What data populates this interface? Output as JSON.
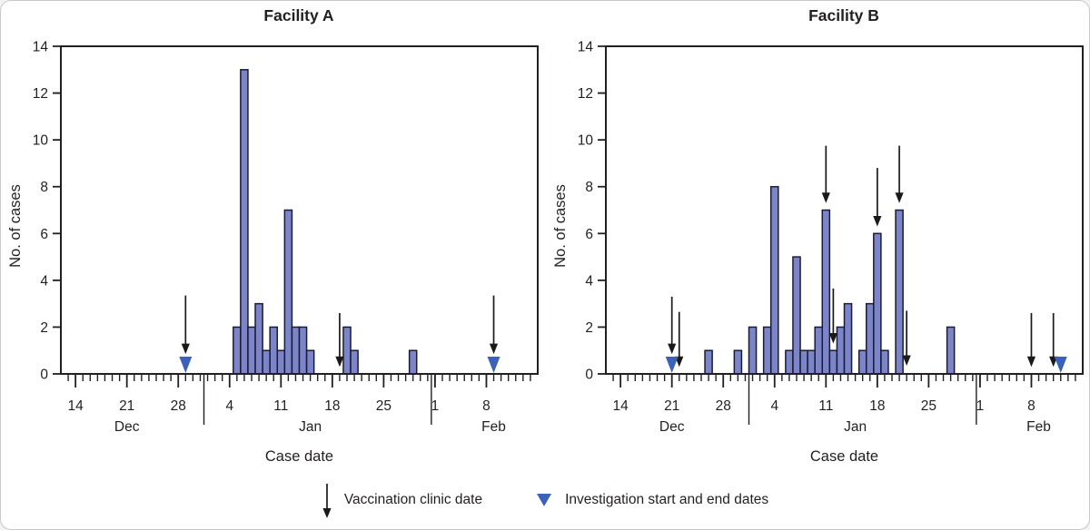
{
  "figure": {
    "panels": [
      "Facility A",
      "Facility B"
    ],
    "colors": {
      "bar_fill": "#7b85c7",
      "bar_stroke": "#1b1b33",
      "axis": "#231f20",
      "arrow": "#1a1a1a",
      "triangle": "#3b62b8",
      "card_border": "#c9c9c9"
    }
  },
  "legend": {
    "vaccination": "Vaccination clinic date",
    "investigation": "Investigation start and end dates"
  },
  "chart_data": [
    {
      "type": "bar",
      "title": "Facility A",
      "xlabel": "Case date",
      "ylabel": "No. of cases",
      "ylim": [
        0,
        14
      ],
      "yticks": [
        0,
        2,
        4,
        6,
        8,
        10,
        12,
        14
      ],
      "x_axis": {
        "start": "Dec 13",
        "end": "Feb 14",
        "week_ticks": [
          "Dec 14",
          "Dec 21",
          "Dec 28",
          "Jan 4",
          "Jan 11",
          "Jan 18",
          "Jan 25",
          "Feb 1",
          "Feb 8"
        ],
        "month_labels": [
          {
            "label": "Dec",
            "at": "Dec 21"
          },
          {
            "label": "Jan",
            "at": "Jan 15"
          },
          {
            "label": "Feb",
            "at": "Feb 9"
          }
        ],
        "month_dividers": [
          "Dec 31",
          "Jan 31"
        ]
      },
      "bars": [
        {
          "date": "Jan 5",
          "cases": 2
        },
        {
          "date": "Jan 6",
          "cases": 13
        },
        {
          "date": "Jan 7",
          "cases": 2
        },
        {
          "date": "Jan 8",
          "cases": 3
        },
        {
          "date": "Jan 9",
          "cases": 1
        },
        {
          "date": "Jan 10",
          "cases": 2
        },
        {
          "date": "Jan 11",
          "cases": 1
        },
        {
          "date": "Jan 12",
          "cases": 7
        },
        {
          "date": "Jan 13",
          "cases": 2
        },
        {
          "date": "Jan 14",
          "cases": 2
        },
        {
          "date": "Jan 15",
          "cases": 1
        },
        {
          "date": "Jan 20",
          "cases": 2
        },
        {
          "date": "Jan 21",
          "cases": 1
        },
        {
          "date": "Jan 29",
          "cases": 1
        }
      ],
      "vaccination_arrows": [
        {
          "date": "Dec 29",
          "from": 3.35,
          "to": 0.85
        },
        {
          "date": "Jan 19",
          "from": 2.6,
          "to": 0.3
        },
        {
          "date": "Feb 9",
          "from": 3.35,
          "to": 0.85
        }
      ],
      "investigation_markers": [
        "Dec 29",
        "Feb 9"
      ]
    },
    {
      "type": "bar",
      "title": "Facility B",
      "xlabel": "Case date",
      "ylabel": "No. of cases",
      "ylim": [
        0,
        14
      ],
      "yticks": [
        0,
        2,
        4,
        6,
        8,
        10,
        12,
        14
      ],
      "x_axis": {
        "start": "Dec 13",
        "end": "Feb 14",
        "week_ticks": [
          "Dec 14",
          "Dec 21",
          "Dec 28",
          "Jan 4",
          "Jan 11",
          "Jan 18",
          "Jan 25",
          "Feb 1",
          "Feb 8"
        ],
        "month_labels": [
          {
            "label": "Dec",
            "at": "Dec 21"
          },
          {
            "label": "Jan",
            "at": "Jan 15"
          },
          {
            "label": "Feb",
            "at": "Feb 9"
          }
        ],
        "month_dividers": [
          "Dec 31",
          "Jan 31"
        ]
      },
      "bars": [
        {
          "date": "Dec 26",
          "cases": 1
        },
        {
          "date": "Dec 30",
          "cases": 1
        },
        {
          "date": "Jan 1",
          "cases": 2
        },
        {
          "date": "Jan 3",
          "cases": 2
        },
        {
          "date": "Jan 4",
          "cases": 8
        },
        {
          "date": "Jan 6",
          "cases": 1
        },
        {
          "date": "Jan 7",
          "cases": 5
        },
        {
          "date": "Jan 8",
          "cases": 1
        },
        {
          "date": "Jan 9",
          "cases": 1
        },
        {
          "date": "Jan 10",
          "cases": 2
        },
        {
          "date": "Jan 11",
          "cases": 7
        },
        {
          "date": "Jan 12",
          "cases": 1
        },
        {
          "date": "Jan 13",
          "cases": 2
        },
        {
          "date": "Jan 14",
          "cases": 3
        },
        {
          "date": "Jan 16",
          "cases": 1
        },
        {
          "date": "Jan 17",
          "cases": 3
        },
        {
          "date": "Jan 18",
          "cases": 6
        },
        {
          "date": "Jan 19",
          "cases": 1
        },
        {
          "date": "Jan 21",
          "cases": 7
        },
        {
          "date": "Jan 28",
          "cases": 2
        }
      ],
      "vaccination_arrows": [
        {
          "date": "Dec 21",
          "from": 3.3,
          "to": 0.85
        },
        {
          "date": "Dec 22",
          "from": 2.65,
          "to": 0.3
        },
        {
          "date": "Jan 11",
          "from": 9.75,
          "to": 7.3
        },
        {
          "date": "Jan 12",
          "from": 3.65,
          "to": 1.3
        },
        {
          "date": "Jan 18",
          "from": 8.8,
          "to": 6.3
        },
        {
          "date": "Jan 21",
          "from": 9.75,
          "to": 7.3
        },
        {
          "date": "Jan 22",
          "from": 2.7,
          "to": 0.35
        },
        {
          "date": "Feb 8",
          "from": 2.6,
          "to": 0.3
        },
        {
          "date": "Feb 11",
          "from": 2.6,
          "to": 0.3
        }
      ],
      "investigation_markers": [
        "Dec 21",
        "Feb 12"
      ]
    }
  ]
}
